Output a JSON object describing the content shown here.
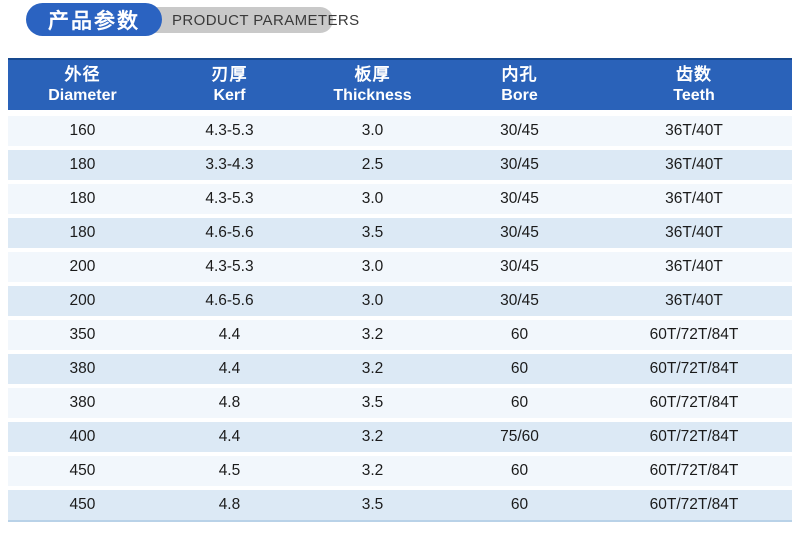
{
  "title": {
    "zh": "产品参数",
    "en": "PRODUCT PARAMETERS",
    "zh_pill_color": "#2b63c1",
    "en_pill_color": "#c9c9c9"
  },
  "table": {
    "header_bg": "#2a62b9",
    "header_top_line": "#17498f",
    "row_light_bg": "#f2f7fc",
    "row_alt_bg": "#dce9f5",
    "columns": [
      {
        "zh": "外径",
        "en": "Diameter"
      },
      {
        "zh": "刃厚",
        "en": "Kerf"
      },
      {
        "zh": "板厚",
        "en": "Thickness"
      },
      {
        "zh": "内孔",
        "en": "Bore"
      },
      {
        "zh": "齿数",
        "en": "Teeth"
      }
    ],
    "rows": [
      [
        "160",
        "4.3-5.3",
        "3.0",
        "30/45",
        "36T/40T"
      ],
      [
        "180",
        "3.3-4.3",
        "2.5",
        "30/45",
        "36T/40T"
      ],
      [
        "180",
        "4.3-5.3",
        "3.0",
        "30/45",
        "36T/40T"
      ],
      [
        "180",
        "4.6-5.6",
        "3.5",
        "30/45",
        "36T/40T"
      ],
      [
        "200",
        "4.3-5.3",
        "3.0",
        "30/45",
        "36T/40T"
      ],
      [
        "200",
        "4.6-5.6",
        "3.0",
        "30/45",
        "36T/40T"
      ],
      [
        "350",
        "4.4",
        "3.2",
        "60",
        "60T/72T/84T"
      ],
      [
        "380",
        "4.4",
        "3.2",
        "60",
        "60T/72T/84T"
      ],
      [
        "380",
        "4.8",
        "3.5",
        "60",
        "60T/72T/84T"
      ],
      [
        "400",
        "4.4",
        "3.2",
        "75/60",
        "60T/72T/84T"
      ],
      [
        "450",
        "4.5",
        "3.2",
        "60",
        "60T/72T/84T"
      ],
      [
        "450",
        "4.8",
        "3.5",
        "60",
        "60T/72T/84T"
      ]
    ]
  }
}
